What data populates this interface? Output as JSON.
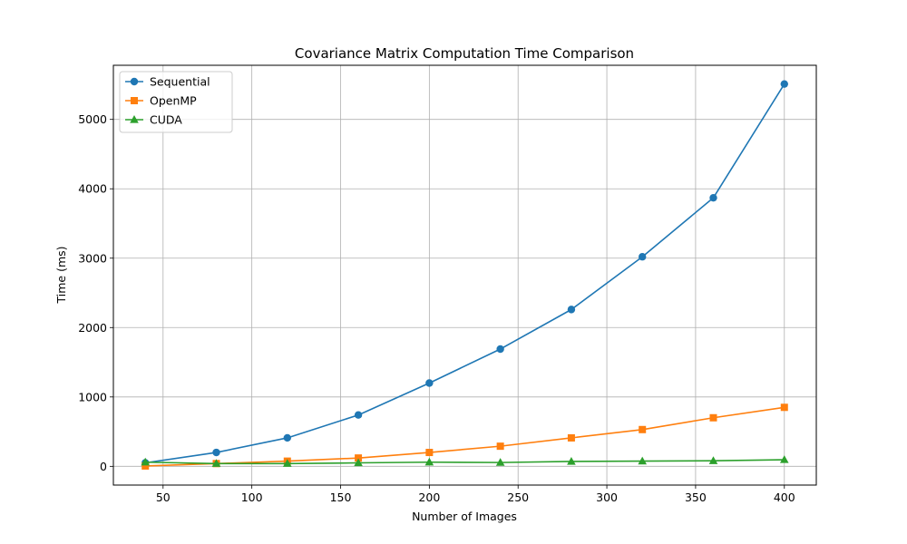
{
  "chart_data": {
    "type": "line",
    "title": "Covariance Matrix Computation Time Comparison",
    "xlabel": "Number of Images",
    "ylabel": "Time (ms)",
    "xlim": [
      22,
      418
    ],
    "ylim": [
      -270,
      5780
    ],
    "x_ticks": [
      50,
      100,
      150,
      200,
      250,
      300,
      350,
      400
    ],
    "y_ticks": [
      0,
      1000,
      2000,
      3000,
      4000,
      5000
    ],
    "grid": true,
    "legend_position": "top-left",
    "x": [
      40,
      80,
      120,
      160,
      200,
      240,
      280,
      320,
      360,
      400
    ],
    "series": [
      {
        "name": "Sequential",
        "color": "#1f77b4",
        "marker": "circle",
        "values": [
          50,
          200,
          410,
          740,
          1200,
          1690,
          2260,
          3020,
          3870,
          5510
        ]
      },
      {
        "name": "OpenMP",
        "color": "#ff7f0e",
        "marker": "square",
        "values": [
          5,
          40,
          75,
          120,
          200,
          290,
          410,
          530,
          700,
          850
        ]
      },
      {
        "name": "CUDA",
        "color": "#2ca02c",
        "marker": "triangle",
        "values": [
          60,
          40,
          40,
          50,
          60,
          55,
          70,
          75,
          80,
          95
        ]
      }
    ]
  }
}
